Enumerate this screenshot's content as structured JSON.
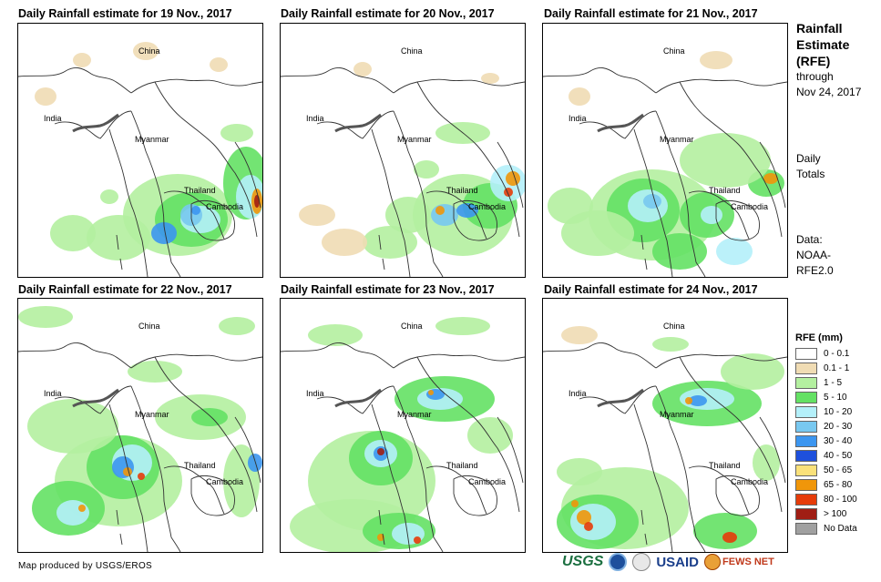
{
  "panels": [
    {
      "title": "Daily Rainfall estimate for 19 Nov., 2017",
      "labels": {
        "china": "China",
        "india": "India",
        "myanmar": "Myanmar",
        "thailand": "Thailand",
        "cambodia": "Cambodia"
      }
    },
    {
      "title": "Daily Rainfall estimate for 20 Nov., 2017",
      "labels": {
        "china": "China",
        "india": "India",
        "myanmar": "Myanmar",
        "thailand": "Thailand",
        "cambodia": "Cambodia"
      }
    },
    {
      "title": "Daily Rainfall estimate for 21 Nov., 2017",
      "labels": {
        "china": "China",
        "india": "India",
        "myanmar": "Myanmar",
        "thailand": "Thailand",
        "cambodia": "Cambodia"
      }
    },
    {
      "title": "Daily Rainfall estimate for 22 Nov., 2017",
      "labels": {
        "china": "China",
        "india": "India",
        "myanmar": "Myanmar",
        "thailand": "Thailand",
        "cambodia": "Cambodia"
      }
    },
    {
      "title": "Daily Rainfall estimate for 23 Nov., 2017",
      "labels": {
        "china": "China",
        "india": "India",
        "myanmar": "Myanmar",
        "thailand": "Thailand",
        "cambodia": "Cambodia"
      }
    },
    {
      "title": "Daily Rainfall estimate for 24 Nov., 2017",
      "labels": {
        "china": "China",
        "india": "India",
        "myanmar": "Myanmar",
        "thailand": "Thailand",
        "cambodia": "Cambodia"
      }
    }
  ],
  "side": {
    "title_line1": "Rainfall",
    "title_line2": "Estimate",
    "title_line3": "(RFE)",
    "through": "through",
    "date": "Nov 24, 2017",
    "daily": "Daily",
    "totals": "Totals",
    "data_label": "Data:",
    "source1": "NOAA-",
    "source2": "RFE2.0"
  },
  "legend": {
    "title": "RFE (mm)",
    "items": [
      {
        "label": "0 - 0.1",
        "color": "#ffffff"
      },
      {
        "label": "0.1 - 1",
        "color": "#f0dcb4"
      },
      {
        "label": "1 - 5",
        "color": "#b4f0a0"
      },
      {
        "label": "5 - 10",
        "color": "#64e164"
      },
      {
        "label": "10 - 20",
        "color": "#b4f0fa"
      },
      {
        "label": "20 - 30",
        "color": "#78c8f0"
      },
      {
        "label": "30 - 40",
        "color": "#3c96f0"
      },
      {
        "label": "40 - 50",
        "color": "#1e50dc"
      },
      {
        "label": "50 - 65",
        "color": "#fae17a"
      },
      {
        "label": "65 - 80",
        "color": "#f0960a"
      },
      {
        "label": "80 - 100",
        "color": "#e63c0a"
      },
      {
        "label": "> 100",
        "color": "#a01e14"
      },
      {
        "label": "No Data",
        "color": "#a0a0a0"
      }
    ]
  },
  "credit": "Map produced by USGS/EROS",
  "logos": {
    "usgs": "USGS",
    "noaa": "noaa-logo",
    "seal": "usda-seal-logo",
    "usaid": "USAID",
    "fews": "FEWS NET"
  }
}
